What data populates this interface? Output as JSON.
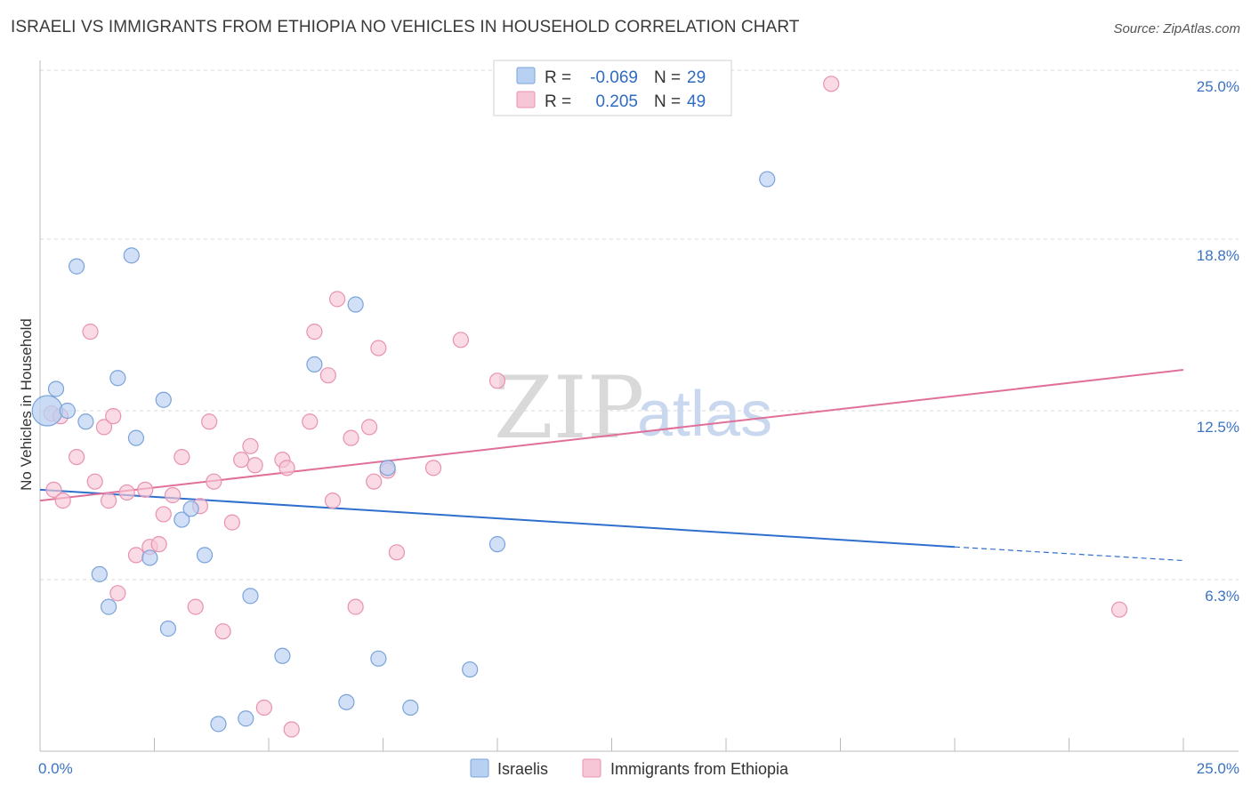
{
  "title": "ISRAELI VS IMMIGRANTS FROM ETHIOPIA NO VEHICLES IN HOUSEHOLD CORRELATION CHART",
  "source": "Source: ZipAtlas.com",
  "watermark": {
    "zip": "ZIP",
    "atlas": "atlas"
  },
  "colors": {
    "blue_fill": "#b8d0f2",
    "blue_stroke": "#7aa3da",
    "blue_line": "#2f6fcd",
    "pink_fill": "#f7c6d6",
    "pink_stroke": "#e892b0",
    "pink_line": "#e0709a",
    "grid": "#d8d8d8",
    "axis_text": "#3b73c4"
  },
  "legend": {
    "rows": [
      {
        "r_label": "R =",
        "r_value": "-0.069",
        "n_label": "N =",
        "n_value": "29"
      },
      {
        "r_label": "R =",
        "r_value": "0.205",
        "n_label": "N =",
        "n_value": "49"
      }
    ]
  },
  "bottom_legend": [
    "Israelis",
    "Immigrants from Ethiopia"
  ],
  "chart_data": {
    "type": "scatter",
    "title": "ISRAELI VS IMMIGRANTS FROM ETHIOPIA NO VEHICLES IN HOUSEHOLD CORRELATION CHART",
    "xlabel": "",
    "ylabel": "No Vehicles in Household",
    "xlim": [
      0,
      25
    ],
    "ylim": [
      0,
      25
    ],
    "x_tick_labels": [
      "0.0%",
      "25.0%"
    ],
    "y_ticks": [
      6.3,
      12.5,
      18.8,
      25.0
    ],
    "y_tick_labels": [
      "6.3%",
      "12.5%",
      "18.8%",
      "25.0%"
    ],
    "series": [
      {
        "name": "Israelis",
        "color": "blue",
        "points": [
          [
            0.16,
            12.5
          ],
          [
            0.35,
            13.3
          ],
          [
            0.6,
            12.5
          ],
          [
            0.8,
            17.8
          ],
          [
            1.0,
            12.1
          ],
          [
            1.3,
            6.5
          ],
          [
            1.5,
            5.3
          ],
          [
            1.7,
            13.7
          ],
          [
            2.0,
            18.2
          ],
          [
            2.1,
            11.5
          ],
          [
            2.4,
            7.1
          ],
          [
            2.7,
            12.9
          ],
          [
            2.8,
            4.5
          ],
          [
            3.1,
            8.5
          ],
          [
            3.3,
            8.9
          ],
          [
            3.6,
            7.2
          ],
          [
            3.9,
            1.0
          ],
          [
            4.5,
            1.2
          ],
          [
            4.6,
            5.7
          ],
          [
            5.3,
            3.5
          ],
          [
            6.0,
            14.2
          ],
          [
            6.7,
            1.8
          ],
          [
            6.9,
            16.4
          ],
          [
            7.4,
            3.4
          ],
          [
            7.6,
            10.4
          ],
          [
            8.1,
            1.6
          ],
          [
            9.4,
            3.0
          ],
          [
            10.0,
            7.6
          ],
          [
            15.9,
            21.0
          ]
        ],
        "sizes": {
          "0.16,12.5": "large"
        },
        "trend": {
          "x0": 0,
          "y0": 9.6,
          "x1": 20.0,
          "y1": 7.5,
          "dash_to_x": 25.0,
          "dash_to_y": 7.0
        }
      },
      {
        "name": "Immigrants from Ethiopia",
        "color": "pink",
        "points": [
          [
            0.3,
            9.6
          ],
          [
            0.5,
            9.2
          ],
          [
            0.8,
            10.8
          ],
          [
            1.1,
            15.4
          ],
          [
            1.2,
            9.9
          ],
          [
            1.4,
            11.9
          ],
          [
            1.5,
            9.2
          ],
          [
            1.6,
            12.3
          ],
          [
            1.7,
            5.8
          ],
          [
            1.9,
            9.5
          ],
          [
            2.1,
            7.2
          ],
          [
            2.3,
            9.6
          ],
          [
            2.4,
            7.5
          ],
          [
            2.6,
            7.6
          ],
          [
            2.7,
            8.7
          ],
          [
            2.9,
            9.4
          ],
          [
            3.1,
            10.8
          ],
          [
            3.4,
            5.3
          ],
          [
            3.7,
            12.1
          ],
          [
            3.8,
            9.9
          ],
          [
            4.0,
            4.4
          ],
          [
            4.2,
            8.4
          ],
          [
            4.4,
            10.7
          ],
          [
            4.6,
            11.2
          ],
          [
            4.7,
            10.5
          ],
          [
            4.9,
            1.6
          ],
          [
            5.3,
            10.7
          ],
          [
            5.4,
            10.4
          ],
          [
            5.5,
            0.8
          ],
          [
            5.9,
            12.1
          ],
          [
            6.0,
            15.4
          ],
          [
            6.3,
            13.8
          ],
          [
            6.4,
            9.2
          ],
          [
            6.5,
            16.6
          ],
          [
            6.8,
            11.5
          ],
          [
            6.9,
            5.3
          ],
          [
            7.2,
            11.9
          ],
          [
            7.3,
            9.9
          ],
          [
            7.4,
            14.8
          ],
          [
            7.6,
            10.3
          ],
          [
            7.8,
            7.3
          ],
          [
            8.6,
            10.4
          ],
          [
            9.2,
            15.1
          ],
          [
            10.0,
            13.6
          ],
          [
            17.3,
            24.5
          ],
          [
            23.6,
            5.2
          ],
          [
            0.25,
            12.4
          ],
          [
            0.45,
            12.3
          ],
          [
            3.5,
            9.0
          ]
        ],
        "trend": {
          "x0": 0,
          "y0": 9.2,
          "x1": 25.0,
          "y1": 14.0
        }
      }
    ]
  }
}
